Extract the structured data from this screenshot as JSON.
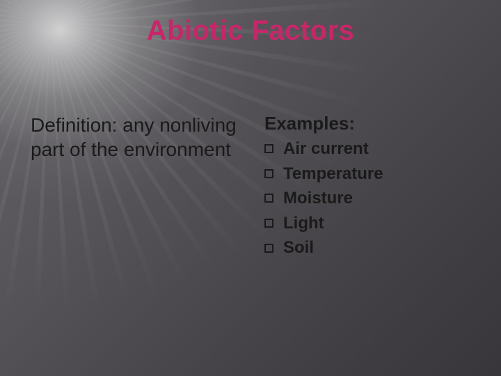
{
  "slide": {
    "title": "Abiotic Factors",
    "title_color": "#c7276a",
    "text_color": "#1a1a1a",
    "background": {
      "type": "radial-light-rays",
      "light_origin": "top-left",
      "base_gradient": [
        "#6a686c",
        "#38363a"
      ],
      "highlight_color": "#f2f2f2"
    },
    "title_fontsize": 40,
    "body_fontsize": 28,
    "list_fontsize": 24
  },
  "left": {
    "definition_label": "Definition:",
    "definition_body": "any nonliving part of the environment"
  },
  "right": {
    "examples_label": "Examples:",
    "items": [
      "Air current",
      "Temperature",
      "Moisture",
      "Light",
      "Soil"
    ],
    "bullet_style": "hollow-square"
  }
}
